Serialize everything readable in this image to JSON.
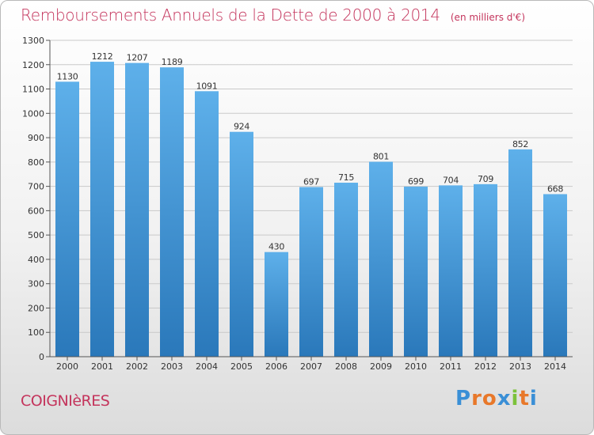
{
  "title": "Remboursements Annuels de la Dette de 2000 à 2014",
  "unit": "(en milliers d'€)",
  "commune": "COIGNIèRES",
  "logo": {
    "letters": [
      "P",
      "r",
      "o",
      "x",
      "i",
      "t",
      "i"
    ],
    "colors": [
      "#3a8fd6",
      "#e8782a",
      "#e8782a",
      "#3a8fd6",
      "#7cc23a",
      "#e8782a",
      "#3a8fd6"
    ]
  },
  "colors": {
    "accent": "#c4345c",
    "bar_top": "#5eb0ea",
    "bar_bottom": "#2a78ba",
    "grid": "#c9c9c9"
  },
  "chart_data": {
    "type": "bar",
    "title": "Remboursements Annuels de la Dette de 2000 à 2014",
    "xlabel": "",
    "ylabel": "(en milliers d'€)",
    "categories": [
      "2000",
      "2001",
      "2002",
      "2003",
      "2004",
      "2005",
      "2006",
      "2007",
      "2008",
      "2009",
      "2010",
      "2011",
      "2012",
      "2013",
      "2014"
    ],
    "values": [
      1130,
      1212,
      1207,
      1189,
      1091,
      924,
      430,
      697,
      715,
      801,
      699,
      704,
      709,
      852,
      668
    ],
    "ylim": [
      0,
      1300
    ],
    "yticks": [
      0,
      100,
      200,
      300,
      400,
      500,
      600,
      700,
      800,
      900,
      1000,
      1100,
      1200,
      1300
    ],
    "grid": true
  }
}
